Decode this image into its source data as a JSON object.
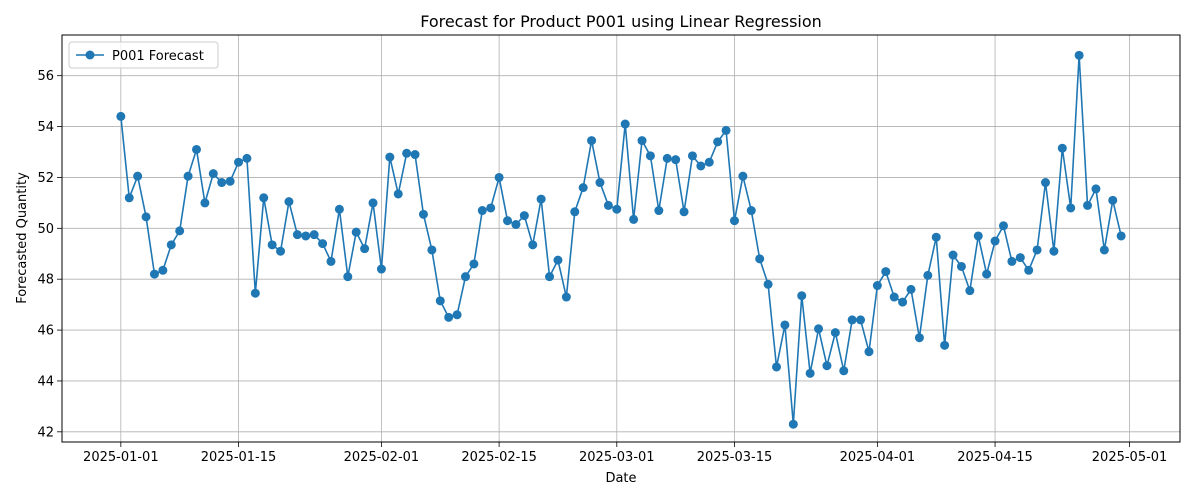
{
  "chart_data": {
    "type": "line",
    "title": "Forecast for Product P001 using Linear Regression",
    "xlabel": "Date",
    "ylabel": "Forecasted Quantity",
    "x_start": "2025-01-01",
    "xlim": [
      "2024-12-25",
      "2025-05-07"
    ],
    "ylim": [
      41.6,
      57.6
    ],
    "grid": true,
    "legend_position": "top-left",
    "x_ticks": [
      {
        "date": "2025-01-01",
        "label": "2025-01-01"
      },
      {
        "date": "2025-01-15",
        "label": "2025-01-15"
      },
      {
        "date": "2025-02-01",
        "label": "2025-02-01"
      },
      {
        "date": "2025-02-15",
        "label": "2025-02-15"
      },
      {
        "date": "2025-03-01",
        "label": "2025-03-01"
      },
      {
        "date": "2025-03-15",
        "label": "2025-03-15"
      },
      {
        "date": "2025-04-01",
        "label": "2025-04-01"
      },
      {
        "date": "2025-04-15",
        "label": "2025-04-15"
      },
      {
        "date": "2025-05-01",
        "label": "2025-05-01"
      }
    ],
    "y_ticks": [
      {
        "value": 42,
        "label": "42"
      },
      {
        "value": 44,
        "label": "44"
      },
      {
        "value": 46,
        "label": "46"
      },
      {
        "value": 48,
        "label": "48"
      },
      {
        "value": 50,
        "label": "50"
      },
      {
        "value": 52,
        "label": "52"
      },
      {
        "value": 54,
        "label": "54"
      },
      {
        "value": 56,
        "label": "56"
      }
    ],
    "series": [
      {
        "name": "P001 Forecast",
        "color": "#1f77b4",
        "marker": "circle",
        "values": [
          54.4,
          51.2,
          52.05,
          50.45,
          48.2,
          48.35,
          49.35,
          49.9,
          52.05,
          53.1,
          51.0,
          52.15,
          51.8,
          51.85,
          52.6,
          52.75,
          47.45,
          51.2,
          49.35,
          49.1,
          51.05,
          49.75,
          49.7,
          49.75,
          49.4,
          48.7,
          50.75,
          48.1,
          49.85,
          49.2,
          51.0,
          48.4,
          52.8,
          51.35,
          52.95,
          52.9,
          50.55,
          49.15,
          47.15,
          46.5,
          46.6,
          48.1,
          48.6,
          50.7,
          50.8,
          52.0,
          50.3,
          50.15,
          50.5,
          49.35,
          51.15,
          48.1,
          48.75,
          47.3,
          50.65,
          51.6,
          53.45,
          51.8,
          50.9,
          50.75,
          54.1,
          50.35,
          53.45,
          52.85,
          50.7,
          52.75,
          52.7,
          50.65,
          52.85,
          52.45,
          52.6,
          53.4,
          53.85,
          50.3,
          52.05,
          50.7,
          48.8,
          47.8,
          44.55,
          46.2,
          42.3,
          47.35,
          44.3,
          46.05,
          44.6,
          45.9,
          44.4,
          46.4,
          46.4,
          45.15,
          47.75,
          48.3,
          47.3,
          47.1,
          47.6,
          45.7,
          48.15,
          49.65,
          45.4,
          48.95,
          48.5,
          47.55,
          49.7,
          48.2,
          49.5,
          50.1,
          48.7,
          48.85,
          48.35,
          49.15,
          51.8,
          49.1,
          53.15,
          50.8,
          56.8,
          50.9,
          51.55,
          49.15,
          51.1,
          49.7
        ]
      }
    ]
  }
}
